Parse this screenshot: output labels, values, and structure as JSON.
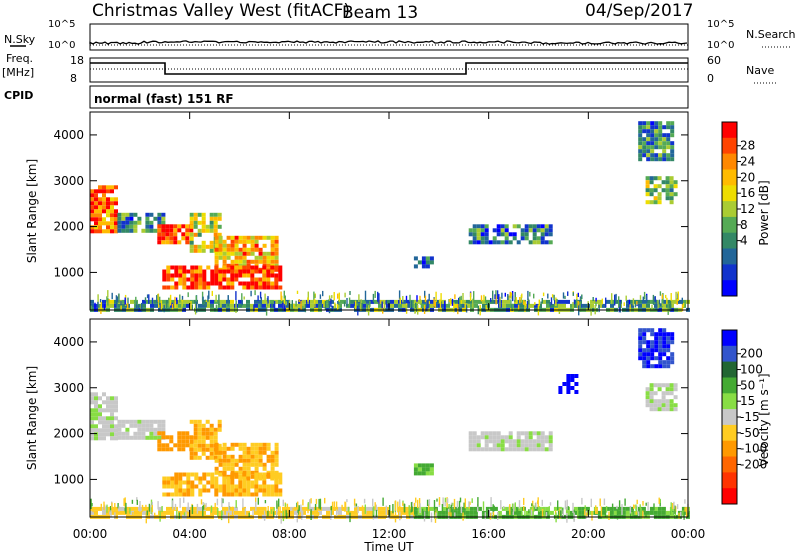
{
  "header": {
    "title": "Christmas Valley West (fitACF)",
    "beam": "Beam 13",
    "date": "04/Sep/2017"
  },
  "labels": {
    "nsky": "N.Sky",
    "nsearch": "N.Search",
    "freq": "Freq.",
    "freq_unit": "[MHz]",
    "cpid": "CPID",
    "nave": "Nave",
    "mode": "normal (fast) 151 RF",
    "x_axis": "Time UT",
    "y_axis_top": "Slant Range [km]",
    "y_axis_bottom": "Slant Range [km]",
    "power_label": "Power [dB]",
    "velocity_label": "Velocity [m s⁻¹]"
  },
  "noise_panel": {
    "left_ticks": [
      "10^5",
      "10^0"
    ],
    "right_ticks": [
      "10^5",
      "10^0"
    ]
  },
  "freq_panel": {
    "left_ticks": [
      "18",
      "8"
    ],
    "right_ticks": [
      "60",
      "0"
    ]
  },
  "colorbars": {
    "power": {
      "ticks": [
        "28",
        "24",
        "20",
        "16",
        "12",
        "8",
        "4"
      ],
      "colors": [
        "#ff0000",
        "#ff4400",
        "#ff8800",
        "#ffbb00",
        "#eedd00",
        "#aacc33",
        "#55aa55",
        "#338866",
        "#226699",
        "#1133cc",
        "#0000ff"
      ]
    },
    "velocity": {
      "ticks": [
        "200",
        "100",
        "50",
        "15",
        "-15",
        "-50",
        "-100",
        "-200"
      ],
      "colors": [
        "#0000ff",
        "#3355cc",
        "#226633",
        "#44aa33",
        "#88dd44",
        "#c8c8c8",
        "#ffcc22",
        "#ff9900",
        "#ff6600",
        "#ff3300",
        "#ff0000"
      ]
    }
  },
  "chart_data": {
    "type": "heatmap",
    "x_ticks": [
      "00:00",
      "04:00",
      "08:00",
      "12:00",
      "16:00",
      "20:00",
      "00:00"
    ],
    "x_range_hours": [
      0,
      24
    ],
    "y_ticks": [
      1000,
      2000,
      3000,
      4000
    ],
    "y_range_km": [
      180,
      4500
    ],
    "power_regions": [
      {
        "t0": 0.0,
        "t1": 1.1,
        "r0": 1900,
        "r1": 2900,
        "level": 26
      },
      {
        "t0": 1.1,
        "t1": 3.0,
        "r0": 1900,
        "r1": 2300,
        "level": 10
      },
      {
        "t0": 2.7,
        "t1": 4.0,
        "r0": 1650,
        "r1": 2050,
        "level": 27
      },
      {
        "t0": 4.0,
        "t1": 5.2,
        "r0": 1500,
        "r1": 2300,
        "level": 17
      },
      {
        "t0": 5.0,
        "t1": 7.5,
        "r0": 1100,
        "r1": 1800,
        "level": 22
      },
      {
        "t0": 2.9,
        "t1": 7.6,
        "r0": 650,
        "r1": 1150,
        "level": 28
      },
      {
        "t0": 0.0,
        "t1": 24.0,
        "r0": 180,
        "r1": 400,
        "level": 11
      },
      {
        "t0": 13.0,
        "t1": 13.7,
        "r0": 1150,
        "r1": 1350,
        "level": 7
      },
      {
        "t0": 15.2,
        "t1": 18.5,
        "r0": 1650,
        "r1": 2050,
        "level": 9
      },
      {
        "t0": 22.3,
        "t1": 23.5,
        "r0": 2500,
        "r1": 3100,
        "level": 14
      },
      {
        "t0": 22.0,
        "t1": 23.3,
        "r0": 3500,
        "r1": 4300,
        "level": 10
      }
    ],
    "velocity_regions": [
      {
        "t0": 0.0,
        "t1": 1.1,
        "r0": 1900,
        "r1": 2900,
        "level": 0
      },
      {
        "t0": 1.1,
        "t1": 3.0,
        "r0": 1900,
        "r1": 2300,
        "level": 0
      },
      {
        "t0": 2.7,
        "t1": 4.0,
        "r0": 1650,
        "r1": 2050,
        "level": -60
      },
      {
        "t0": 4.0,
        "t1": 5.2,
        "r0": 1500,
        "r1": 2300,
        "level": -30
      },
      {
        "t0": 5.0,
        "t1": 7.5,
        "r0": 1100,
        "r1": 1800,
        "level": -30
      },
      {
        "t0": 2.9,
        "t1": 7.6,
        "r0": 650,
        "r1": 1150,
        "level": -30
      },
      {
        "t0": 0.0,
        "t1": 13.0,
        "r0": 180,
        "r1": 400,
        "level": -20
      },
      {
        "t0": 13.0,
        "t1": 24.0,
        "r0": 180,
        "r1": 400,
        "level": 20
      },
      {
        "t0": 13.0,
        "t1": 13.7,
        "r0": 1150,
        "r1": 1350,
        "level": 20
      },
      {
        "t0": 15.2,
        "t1": 18.5,
        "r0": 1650,
        "r1": 2050,
        "level": 0
      },
      {
        "t0": 18.8,
        "t1": 19.6,
        "r0": 2900,
        "r1": 3300,
        "level": 200
      },
      {
        "t0": 22.3,
        "t1": 23.5,
        "r0": 2500,
        "r1": 3100,
        "level": 0
      },
      {
        "t0": 22.0,
        "t1": 23.3,
        "r0": 3500,
        "r1": 4300,
        "level": 150
      }
    ]
  }
}
